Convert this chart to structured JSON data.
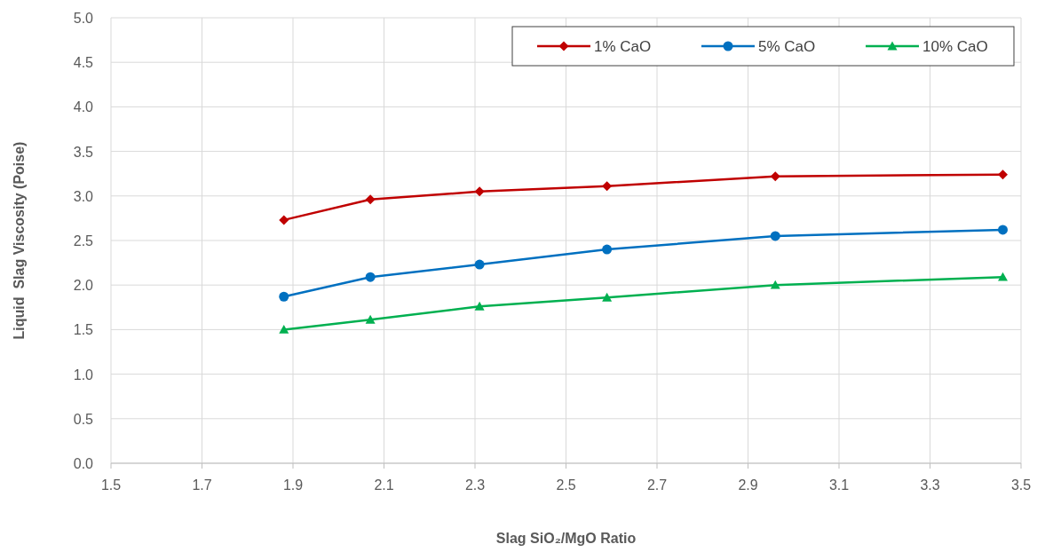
{
  "chart_data": {
    "type": "line",
    "xlabel": "Slag SiO₂/MgO Ratio",
    "ylabel": "Liquid  Slag Viscosity (Poise)",
    "x": [
      1.88,
      2.07,
      2.31,
      2.59,
      2.96,
      3.46
    ],
    "series": [
      {
        "name": "1% CaO",
        "color": "#c00000",
        "marker": "diamond",
        "values": [
          2.73,
          2.96,
          3.05,
          3.11,
          3.22,
          3.24
        ]
      },
      {
        "name": "5% CaO",
        "color": "#0070c0",
        "marker": "circle",
        "values": [
          1.87,
          2.09,
          2.23,
          2.4,
          2.55,
          2.62
        ]
      },
      {
        "name": "10% CaO",
        "color": "#00b050",
        "marker": "triangle",
        "values": [
          1.5,
          1.61,
          1.76,
          1.86,
          2.0,
          2.09
        ]
      }
    ],
    "xlim": [
      1.5,
      3.5
    ],
    "xticks": [
      {
        "value": 1.5,
        "label": "1.5"
      },
      {
        "value": 1.7,
        "label": "1.7"
      },
      {
        "value": 1.9,
        "label": "1.9"
      },
      {
        "value": 2.1,
        "label": "2.1"
      },
      {
        "value": 2.3,
        "label": "2.3"
      },
      {
        "value": 2.5,
        "label": "2.5"
      },
      {
        "value": 2.7,
        "label": "2.7"
      },
      {
        "value": 2.9,
        "label": "2.9"
      },
      {
        "value": 3.1,
        "label": "3.1"
      },
      {
        "value": 3.3,
        "label": "3.3"
      },
      {
        "value": 3.5,
        "label": "3.5"
      }
    ],
    "ylim": [
      0,
      5
    ],
    "yticks": [
      {
        "value": 0,
        "label": "0.0"
      },
      {
        "value": 0.5,
        "label": "0.5"
      },
      {
        "value": 1,
        "label": "1.0"
      },
      {
        "value": 1.5,
        "label": "1.5"
      },
      {
        "value": 2,
        "label": "2.0"
      },
      {
        "value": 2.5,
        "label": "2.5"
      },
      {
        "value": 3,
        "label": "3.0"
      },
      {
        "value": 3.5,
        "label": "3.5"
      },
      {
        "value": 4,
        "label": "4.0"
      },
      {
        "value": 4.5,
        "label": "4.5"
      },
      {
        "value": 5,
        "label": "5.0"
      }
    ],
    "grid": true,
    "legend": "top right",
    "line_style": "solid"
  }
}
